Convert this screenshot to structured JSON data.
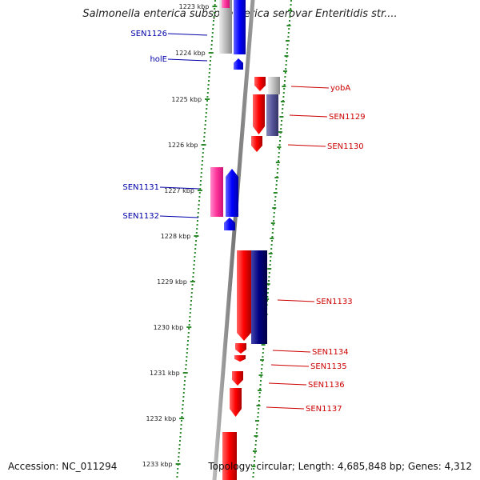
{
  "title": "Salmonella enterica subsp. enterica serovar Enteritidis str....",
  "footer": {
    "accession": "Accession: NC_011294",
    "topology": "Topology: circular; Length: 4,685,848 bp; Genes: 4,312"
  },
  "kbp_labels": [
    "1223 kbp",
    "1224 kbp",
    "1225 kbp",
    "1226 kbp",
    "1227 kbp",
    "1228 kbp",
    "1229 kbp",
    "1230 kbp",
    "1231 kbp",
    "1232 kbp",
    "1233 kbp"
  ],
  "genes_left": [
    "SEN1126",
    "holE",
    "SEN1131",
    "SEN1132"
  ],
  "genes_right": [
    "yobA",
    "SEN1129",
    "SEN1130",
    "SEN1133",
    "SEN1134",
    "SEN1135",
    "SEN1136",
    "SEN1137"
  ],
  "colors": {
    "forward": "#0000ff",
    "pink": "#ff3399",
    "reverse": "#ff0000",
    "navy": "#000080",
    "slate": "#555599",
    "grey": "#bbbbbb",
    "tick": "#2a8a2a",
    "backbone": "#888888"
  }
}
